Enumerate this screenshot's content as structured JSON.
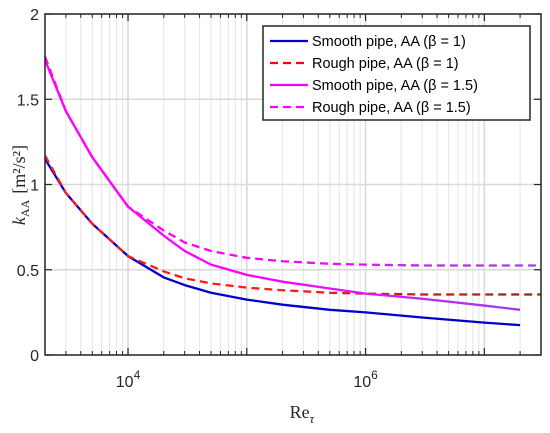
{
  "chart_data": {
    "type": "line",
    "xscale": "log",
    "xlim": [
      2000,
      30000000
    ],
    "ylim": [
      0,
      2
    ],
    "grid": true,
    "legend_position": "top-right",
    "xlabel": "Re",
    "xlabel_sub": "τ",
    "ylabel": "k",
    "ylabel_sub": "AA",
    "ylabel_unit": "[m²/s²]",
    "x_ticks": [
      {
        "value": 10000,
        "base": "10",
        "exp": "4"
      },
      {
        "value": 1000000,
        "base": "10",
        "exp": "6"
      }
    ],
    "y_ticks": [
      {
        "value": 0,
        "label": "0"
      },
      {
        "value": 0.5,
        "label": "0.5"
      },
      {
        "value": 1,
        "label": "1"
      },
      {
        "value": 1.5,
        "label": "1.5"
      },
      {
        "value": 2,
        "label": "2"
      }
    ],
    "legend": [
      {
        "label": "Smooth pipe, AA (β = 1)",
        "color": "#0000cc",
        "dash": "solid"
      },
      {
        "label": "Rough pipe, AA (β = 1)",
        "color": "#ff0000",
        "dash": "dashed"
      },
      {
        "label": "Smooth pipe, AA (β = 1.5)",
        "color": "#ff00ff",
        "dash": "solid"
      },
      {
        "label": "Rough pipe, AA (β = 1.5)",
        "color": "#ff00ff",
        "dash": "dashed"
      }
    ],
    "series": [
      {
        "name": "Smooth pipe, AA (β = 1)",
        "color": "#0000cc",
        "color_end": "#0000cc",
        "dash": "solid",
        "x": [
          2000,
          3000,
          5000,
          10000,
          20000,
          30000,
          50000,
          100000,
          200000,
          500000,
          1000000,
          3000000,
          10000000,
          20000000
        ],
        "y": [
          1.15,
          0.95,
          0.77,
          0.58,
          0.455,
          0.41,
          0.365,
          0.325,
          0.295,
          0.265,
          0.25,
          0.22,
          0.19,
          0.175
        ]
      },
      {
        "name": "Rough pipe, AA (β = 1)",
        "color": "#ff1a1a",
        "color_end": "#8a2a10",
        "dash": "dashed",
        "x": [
          2000,
          3000,
          5000,
          10000,
          20000,
          30000,
          50000,
          100000,
          200000,
          500000,
          1000000,
          3000000,
          10000000,
          30000000
        ],
        "y": [
          1.17,
          0.95,
          0.77,
          0.58,
          0.49,
          0.45,
          0.42,
          0.395,
          0.38,
          0.365,
          0.36,
          0.355,
          0.355,
          0.355
        ]
      },
      {
        "name": "Smooth pipe, AA (β = 1.5)",
        "color": "#ff00ff",
        "color_end": "#9b40e8",
        "dash": "solid",
        "x": [
          2000,
          3000,
          5000,
          10000,
          20000,
          30000,
          50000,
          100000,
          200000,
          500000,
          1000000,
          3000000,
          10000000,
          20000000
        ],
        "y": [
          1.73,
          1.43,
          1.16,
          0.87,
          0.7,
          0.61,
          0.53,
          0.47,
          0.43,
          0.39,
          0.36,
          0.33,
          0.29,
          0.265
        ]
      },
      {
        "name": "Rough pipe, AA (β = 1.5)",
        "color": "#ff00ff",
        "color_end": "#9b40e8",
        "dash": "dashed",
        "x": [
          2000,
          3000,
          5000,
          10000,
          20000,
          30000,
          50000,
          100000,
          200000,
          500000,
          1000000,
          3000000,
          10000000,
          30000000
        ],
        "y": [
          1.75,
          1.43,
          1.16,
          0.87,
          0.73,
          0.66,
          0.61,
          0.57,
          0.55,
          0.535,
          0.53,
          0.525,
          0.525,
          0.525
        ]
      }
    ]
  }
}
